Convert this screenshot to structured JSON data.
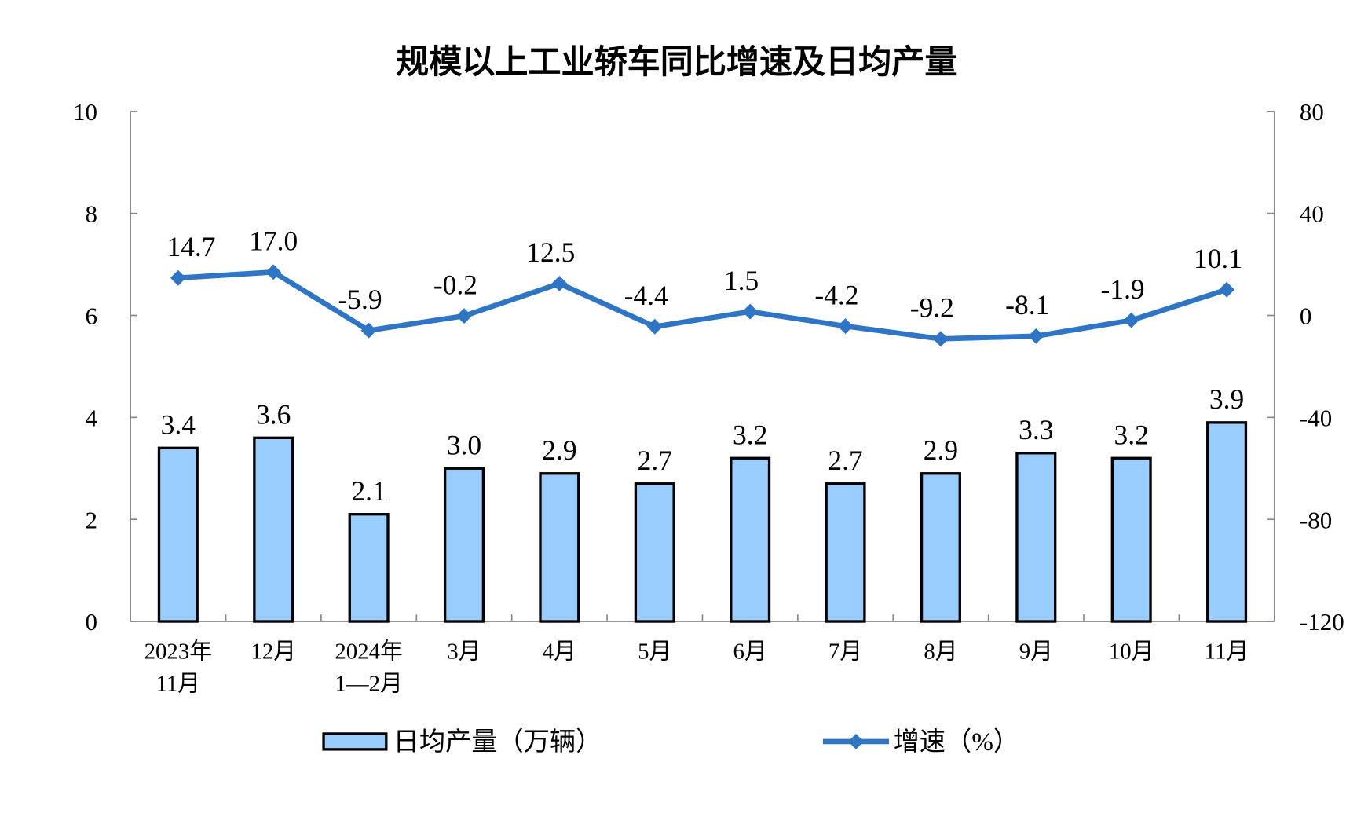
{
  "chart_data": {
    "type": "bar+line",
    "title": "规模以上工业轿车同比增速及日均产量",
    "categories": [
      [
        "2023年",
        "11月"
      ],
      [
        "12月"
      ],
      [
        "2024年",
        "1—2月"
      ],
      [
        "3月"
      ],
      [
        "4月"
      ],
      [
        "5月"
      ],
      [
        "6月"
      ],
      [
        "7月"
      ],
      [
        "8月"
      ],
      [
        "9月"
      ],
      [
        "10月"
      ],
      [
        "11月"
      ]
    ],
    "series": [
      {
        "name": "日均产量（万辆）",
        "type": "bar",
        "axis": "left",
        "color": "#99CCFF",
        "values": [
          3.4,
          3.6,
          2.1,
          3.0,
          2.9,
          2.7,
          3.2,
          2.7,
          2.9,
          3.3,
          3.2,
          3.9
        ],
        "labels": [
          "3.4",
          "3.6",
          "2.1",
          "3.0",
          "2.9",
          "2.7",
          "3.2",
          "2.7",
          "2.9",
          "3.3",
          "3.2",
          "3.9"
        ]
      },
      {
        "name": "增速（%）",
        "type": "line",
        "axis": "right",
        "color": "#2E75C6",
        "marker": "diamond",
        "values": [
          14.7,
          17.0,
          -5.9,
          -0.2,
          12.5,
          -4.4,
          1.5,
          -4.2,
          -9.2,
          -8.1,
          -1.9,
          10.1
        ],
        "labels": [
          "14.7",
          "17.0",
          "-5.9",
          "-0.2",
          "12.5",
          "-4.4",
          "1.5",
          "-4.2",
          "-9.2",
          "-8.1",
          "-1.9",
          "10.1"
        ]
      }
    ],
    "left_axis": {
      "ylim": [
        0,
        10
      ],
      "ticks": [
        "0",
        "2",
        "4",
        "6",
        "8",
        "10"
      ]
    },
    "right_axis": {
      "ylim": [
        -120,
        80
      ],
      "ticks": [
        "-120",
        "-80",
        "-40",
        "0",
        "40",
        "80"
      ]
    },
    "grid": false,
    "legend": "bottom"
  }
}
